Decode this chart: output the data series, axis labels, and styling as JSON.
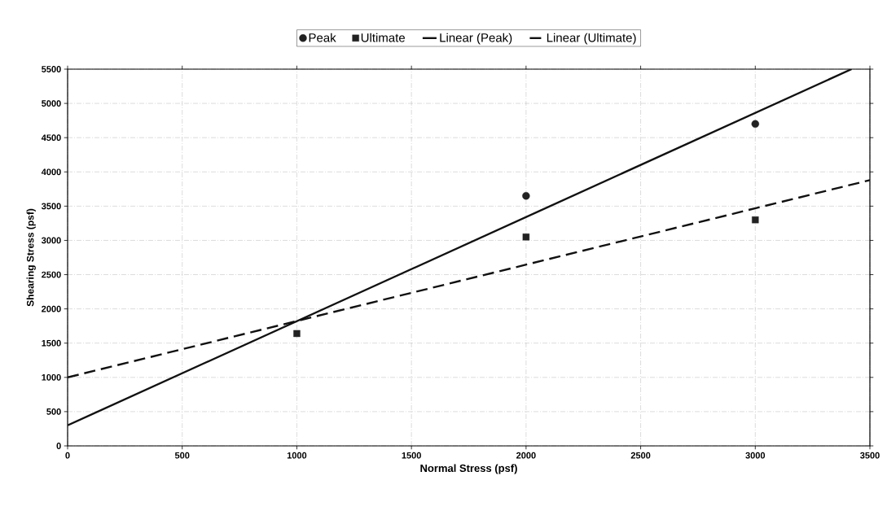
{
  "chart_data": {
    "type": "scatter",
    "xlabel": "Normal Stress (psf)",
    "ylabel": "Shearing Stress (psf)",
    "xlim": [
      0,
      3500
    ],
    "ylim": [
      0,
      5500
    ],
    "xticks": [
      0,
      500,
      1000,
      1500,
      2000,
      2500,
      3000,
      3500
    ],
    "yticks": [
      0,
      500,
      1000,
      1500,
      2000,
      2500,
      3000,
      3500,
      4000,
      4500,
      5000,
      5500
    ],
    "grid": true,
    "legend": "top",
    "series": [
      {
        "name": "Peak",
        "marker": "circle",
        "color": "#222222",
        "x": [
          2000,
          3000
        ],
        "values": [
          3650,
          4700
        ]
      },
      {
        "name": "Ultimate",
        "marker": "square",
        "color": "#222222",
        "x": [
          1000,
          2000,
          3000
        ],
        "values": [
          1640,
          3050,
          3300
        ]
      },
      {
        "name": "Linear (Peak)",
        "type": "line",
        "line_style": "solid",
        "color": "#111111",
        "x": [
          0,
          3420
        ],
        "values": [
          300,
          5500
        ]
      },
      {
        "name": "Linear (Ultimate)",
        "type": "line",
        "line_style": "dashed",
        "color": "#111111",
        "x": [
          0,
          3500
        ],
        "values": [
          1000,
          3880
        ]
      }
    ]
  }
}
